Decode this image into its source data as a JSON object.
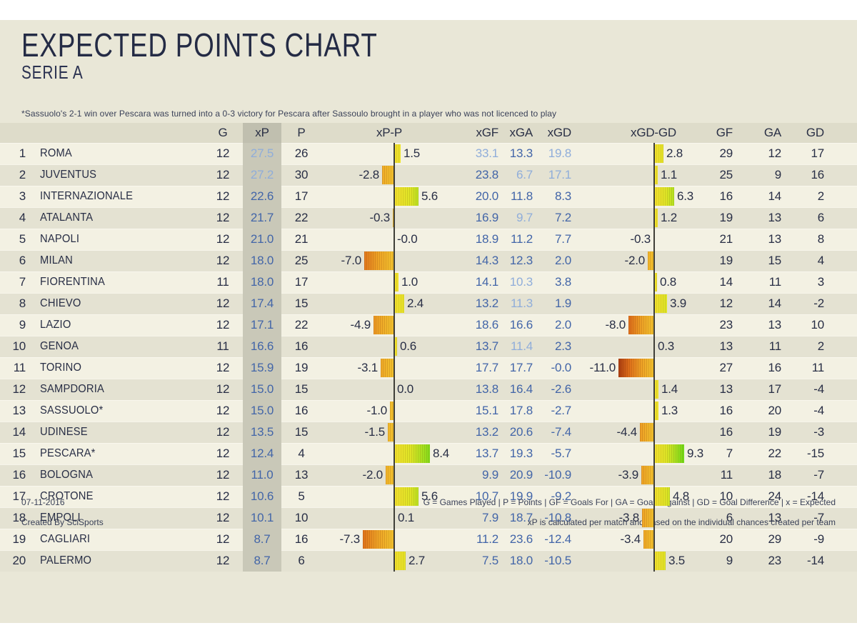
{
  "title": "EXPECTED POINTS CHART",
  "subtitle": "SERIE A",
  "footnote": "*Sassuolo's 2-1 win over Pescara was turned into a 0-3 victory for Pescara after Sassoulo brought in a player who was not licenced to play",
  "footer": {
    "date": "07-11-2016",
    "credit": "Created By SciSports",
    "legend": "G = Games Played | P = Points | GF = Goals For | GA = Goals Against | GD = Goal Difference | x = Expected",
    "xp_note": "xP is calculated per match and based on the individual chances created per team"
  },
  "columns": {
    "g": "G",
    "xp": "xP",
    "p": "P",
    "xpp": "xP-P",
    "xgf": "xGF",
    "xga": "xGA",
    "xgd": "xGD",
    "xgdgd": "xGD-GD",
    "gf": "GF",
    "ga": "GA",
    "gd": "GD"
  },
  "colors": {
    "canvas": "#e9e7d7",
    "header_band": "#dedcca",
    "row_light": "#f3f1e3",
    "row_dark": "#e4e2d2",
    "xp_column_bg": "#c9c8b8",
    "xp_header_bg": "#c0bfaf",
    "text_dark": "#282e45",
    "blue": "#4265a8",
    "blue_light": "#8fadda",
    "bar_yellow": "#f2df2c",
    "bar_green_end": "#45d010",
    "bar_orange": "#eda226",
    "bar_red_end": "#aa3c10",
    "axis": "#3f3f38"
  },
  "chart_data": {
    "type": "table",
    "title": "EXPECTED POINTS CHART",
    "subtitle": "SERIE A",
    "bar_columns": {
      "xpp": {
        "axis_at_zero": true,
        "range": [
          -11,
          11
        ]
      },
      "xgdgd": {
        "axis_at_zero": true,
        "range": [
          -11,
          11
        ]
      }
    },
    "rows": [
      {
        "rank": 1,
        "team": "ROMA",
        "g": 12,
        "xp": "27.5",
        "xp_hi": true,
        "p": 26,
        "xpp": "1.5",
        "xgf": "33.1",
        "xgf_hi": true,
        "xga": "13.3",
        "xga_hi": false,
        "xgd": "19.8",
        "xgd_hi": true,
        "xgdgd": "2.8",
        "gf": 29,
        "ga": 12,
        "gd": 17
      },
      {
        "rank": 2,
        "team": "JUVENTUS",
        "g": 12,
        "xp": "27.2",
        "xp_hi": true,
        "p": 30,
        "xpp": "-2.8",
        "xgf": "23.8",
        "xgf_hi": false,
        "xga": "6.7",
        "xga_hi": true,
        "xgd": "17.1",
        "xgd_hi": true,
        "xgdgd": "1.1",
        "gf": 25,
        "ga": 9,
        "gd": 16
      },
      {
        "rank": 3,
        "team": "INTERNAZIONALE",
        "g": 12,
        "xp": "22.6",
        "xp_hi": false,
        "p": 17,
        "xpp": "5.6",
        "xgf": "20.0",
        "xgf_hi": false,
        "xga": "11.8",
        "xga_hi": false,
        "xgd": "8.3",
        "xgd_hi": false,
        "xgdgd": "6.3",
        "gf": 16,
        "ga": 14,
        "gd": 2
      },
      {
        "rank": 4,
        "team": "ATALANTA",
        "g": 12,
        "xp": "21.7",
        "xp_hi": false,
        "p": 22,
        "xpp": "-0.3",
        "xgf": "16.9",
        "xgf_hi": false,
        "xga": "9.7",
        "xga_hi": true,
        "xgd": "7.2",
        "xgd_hi": false,
        "xgdgd": "1.2",
        "gf": 19,
        "ga": 13,
        "gd": 6
      },
      {
        "rank": 5,
        "team": "NAPOLI",
        "g": 12,
        "xp": "21.0",
        "xp_hi": false,
        "p": 21,
        "xpp": "-0.0",
        "xgf": "18.9",
        "xgf_hi": false,
        "xga": "11.2",
        "xga_hi": false,
        "xgd": "7.7",
        "xgd_hi": false,
        "xgdgd": "-0.3",
        "gf": 21,
        "ga": 13,
        "gd": 8
      },
      {
        "rank": 6,
        "team": "MILAN",
        "g": 12,
        "xp": "18.0",
        "xp_hi": false,
        "p": 25,
        "xpp": "-7.0",
        "xgf": "14.3",
        "xgf_hi": false,
        "xga": "12.3",
        "xga_hi": false,
        "xgd": "2.0",
        "xgd_hi": false,
        "xgdgd": "-2.0",
        "gf": 19,
        "ga": 15,
        "gd": 4
      },
      {
        "rank": 7,
        "team": "FIORENTINA",
        "g": 11,
        "xp": "18.0",
        "xp_hi": false,
        "p": 17,
        "xpp": "1.0",
        "xgf": "14.1",
        "xgf_hi": false,
        "xga": "10.3",
        "xga_hi": true,
        "xgd": "3.8",
        "xgd_hi": false,
        "xgdgd": "0.8",
        "gf": 14,
        "ga": 11,
        "gd": 3
      },
      {
        "rank": 8,
        "team": "CHIEVO",
        "g": 12,
        "xp": "17.4",
        "xp_hi": false,
        "p": 15,
        "xpp": "2.4",
        "xgf": "13.2",
        "xgf_hi": false,
        "xga": "11.3",
        "xga_hi": true,
        "xgd": "1.9",
        "xgd_hi": false,
        "xgdgd": "3.9",
        "gf": 12,
        "ga": 14,
        "gd": -2
      },
      {
        "rank": 9,
        "team": "LAZIO",
        "g": 12,
        "xp": "17.1",
        "xp_hi": false,
        "p": 22,
        "xpp": "-4.9",
        "xgf": "18.6",
        "xgf_hi": false,
        "xga": "16.6",
        "xga_hi": false,
        "xgd": "2.0",
        "xgd_hi": false,
        "xgdgd": "-8.0",
        "gf": 23,
        "ga": 13,
        "gd": 10
      },
      {
        "rank": 10,
        "team": "GENOA",
        "g": 11,
        "xp": "16.6",
        "xp_hi": false,
        "p": 16,
        "xpp": "0.6",
        "xgf": "13.7",
        "xgf_hi": false,
        "xga": "11.4",
        "xga_hi": true,
        "xgd": "2.3",
        "xgd_hi": false,
        "xgdgd": "0.3",
        "gf": 13,
        "ga": 11,
        "gd": 2
      },
      {
        "rank": 11,
        "team": "TORINO",
        "g": 12,
        "xp": "15.9",
        "xp_hi": false,
        "p": 19,
        "xpp": "-3.1",
        "xgf": "17.7",
        "xgf_hi": false,
        "xga": "17.7",
        "xga_hi": false,
        "xgd": "-0.0",
        "xgd_hi": false,
        "xgdgd": "-11.0",
        "gf": 27,
        "ga": 16,
        "gd": 11
      },
      {
        "rank": 12,
        "team": "SAMPDORIA",
        "g": 12,
        "xp": "15.0",
        "xp_hi": false,
        "p": 15,
        "xpp": "0.0",
        "xgf": "13.8",
        "xgf_hi": false,
        "xga": "16.4",
        "xga_hi": false,
        "xgd": "-2.6",
        "xgd_hi": false,
        "xgdgd": "1.4",
        "gf": 13,
        "ga": 17,
        "gd": -4
      },
      {
        "rank": 13,
        "team": "SASSUOLO*",
        "g": 12,
        "xp": "15.0",
        "xp_hi": false,
        "p": 16,
        "xpp": "-1.0",
        "xgf": "15.1",
        "xgf_hi": false,
        "xga": "17.8",
        "xga_hi": false,
        "xgd": "-2.7",
        "xgd_hi": false,
        "xgdgd": "1.3",
        "gf": 16,
        "ga": 20,
        "gd": -4
      },
      {
        "rank": 14,
        "team": "UDINESE",
        "g": 12,
        "xp": "13.5",
        "xp_hi": false,
        "p": 15,
        "xpp": "-1.5",
        "xgf": "13.2",
        "xgf_hi": false,
        "xga": "20.6",
        "xga_hi": false,
        "xgd": "-7.4",
        "xgd_hi": false,
        "xgdgd": "-4.4",
        "gf": 16,
        "ga": 19,
        "gd": -3
      },
      {
        "rank": 15,
        "team": "PESCARA*",
        "g": 12,
        "xp": "12.4",
        "xp_hi": false,
        "p": 4,
        "xpp": "8.4",
        "xgf": "13.7",
        "xgf_hi": false,
        "xga": "19.3",
        "xga_hi": false,
        "xgd": "-5.7",
        "xgd_hi": false,
        "xgdgd": "9.3",
        "gf": 7,
        "ga": 22,
        "gd": -15
      },
      {
        "rank": 16,
        "team": "BOLOGNA",
        "g": 12,
        "xp": "11.0",
        "xp_hi": false,
        "p": 13,
        "xpp": "-2.0",
        "xgf": "9.9",
        "xgf_hi": false,
        "xga": "20.9",
        "xga_hi": false,
        "xgd": "-10.9",
        "xgd_hi": false,
        "xgdgd": "-3.9",
        "gf": 11,
        "ga": 18,
        "gd": -7
      },
      {
        "rank": 17,
        "team": "CROTONE",
        "g": 12,
        "xp": "10.6",
        "xp_hi": false,
        "p": 5,
        "xpp": "5.6",
        "xgf": "10.7",
        "xgf_hi": false,
        "xga": "19.9",
        "xga_hi": false,
        "xgd": "-9.2",
        "xgd_hi": false,
        "xgdgd": "4.8",
        "gf": 10,
        "ga": 24,
        "gd": -14
      },
      {
        "rank": 18,
        "team": "EMPOLI",
        "g": 12,
        "xp": "10.1",
        "xp_hi": false,
        "p": 10,
        "xpp": "0.1",
        "xgf": "7.9",
        "xgf_hi": false,
        "xga": "18.7",
        "xga_hi": false,
        "xgd": "-10.8",
        "xgd_hi": false,
        "xgdgd": "-3.8",
        "gf": 6,
        "ga": 13,
        "gd": -7
      },
      {
        "rank": 19,
        "team": "CAGLIARI",
        "g": 12,
        "xp": "8.7",
        "xp_hi": false,
        "p": 16,
        "xpp": "-7.3",
        "xgf": "11.2",
        "xgf_hi": false,
        "xga": "23.6",
        "xga_hi": false,
        "xgd": "-12.4",
        "xgd_hi": false,
        "xgdgd": "-3.4",
        "gf": 20,
        "ga": 29,
        "gd": -9
      },
      {
        "rank": 20,
        "team": "PALERMO",
        "g": 12,
        "xp": "8.7",
        "xp_hi": false,
        "p": 6,
        "xpp": "2.7",
        "xgf": "7.5",
        "xgf_hi": false,
        "xga": "18.0",
        "xga_hi": false,
        "xgd": "-10.5",
        "xgd_hi": false,
        "xgdgd": "3.5",
        "gf": 9,
        "ga": 23,
        "gd": -14
      }
    ]
  }
}
